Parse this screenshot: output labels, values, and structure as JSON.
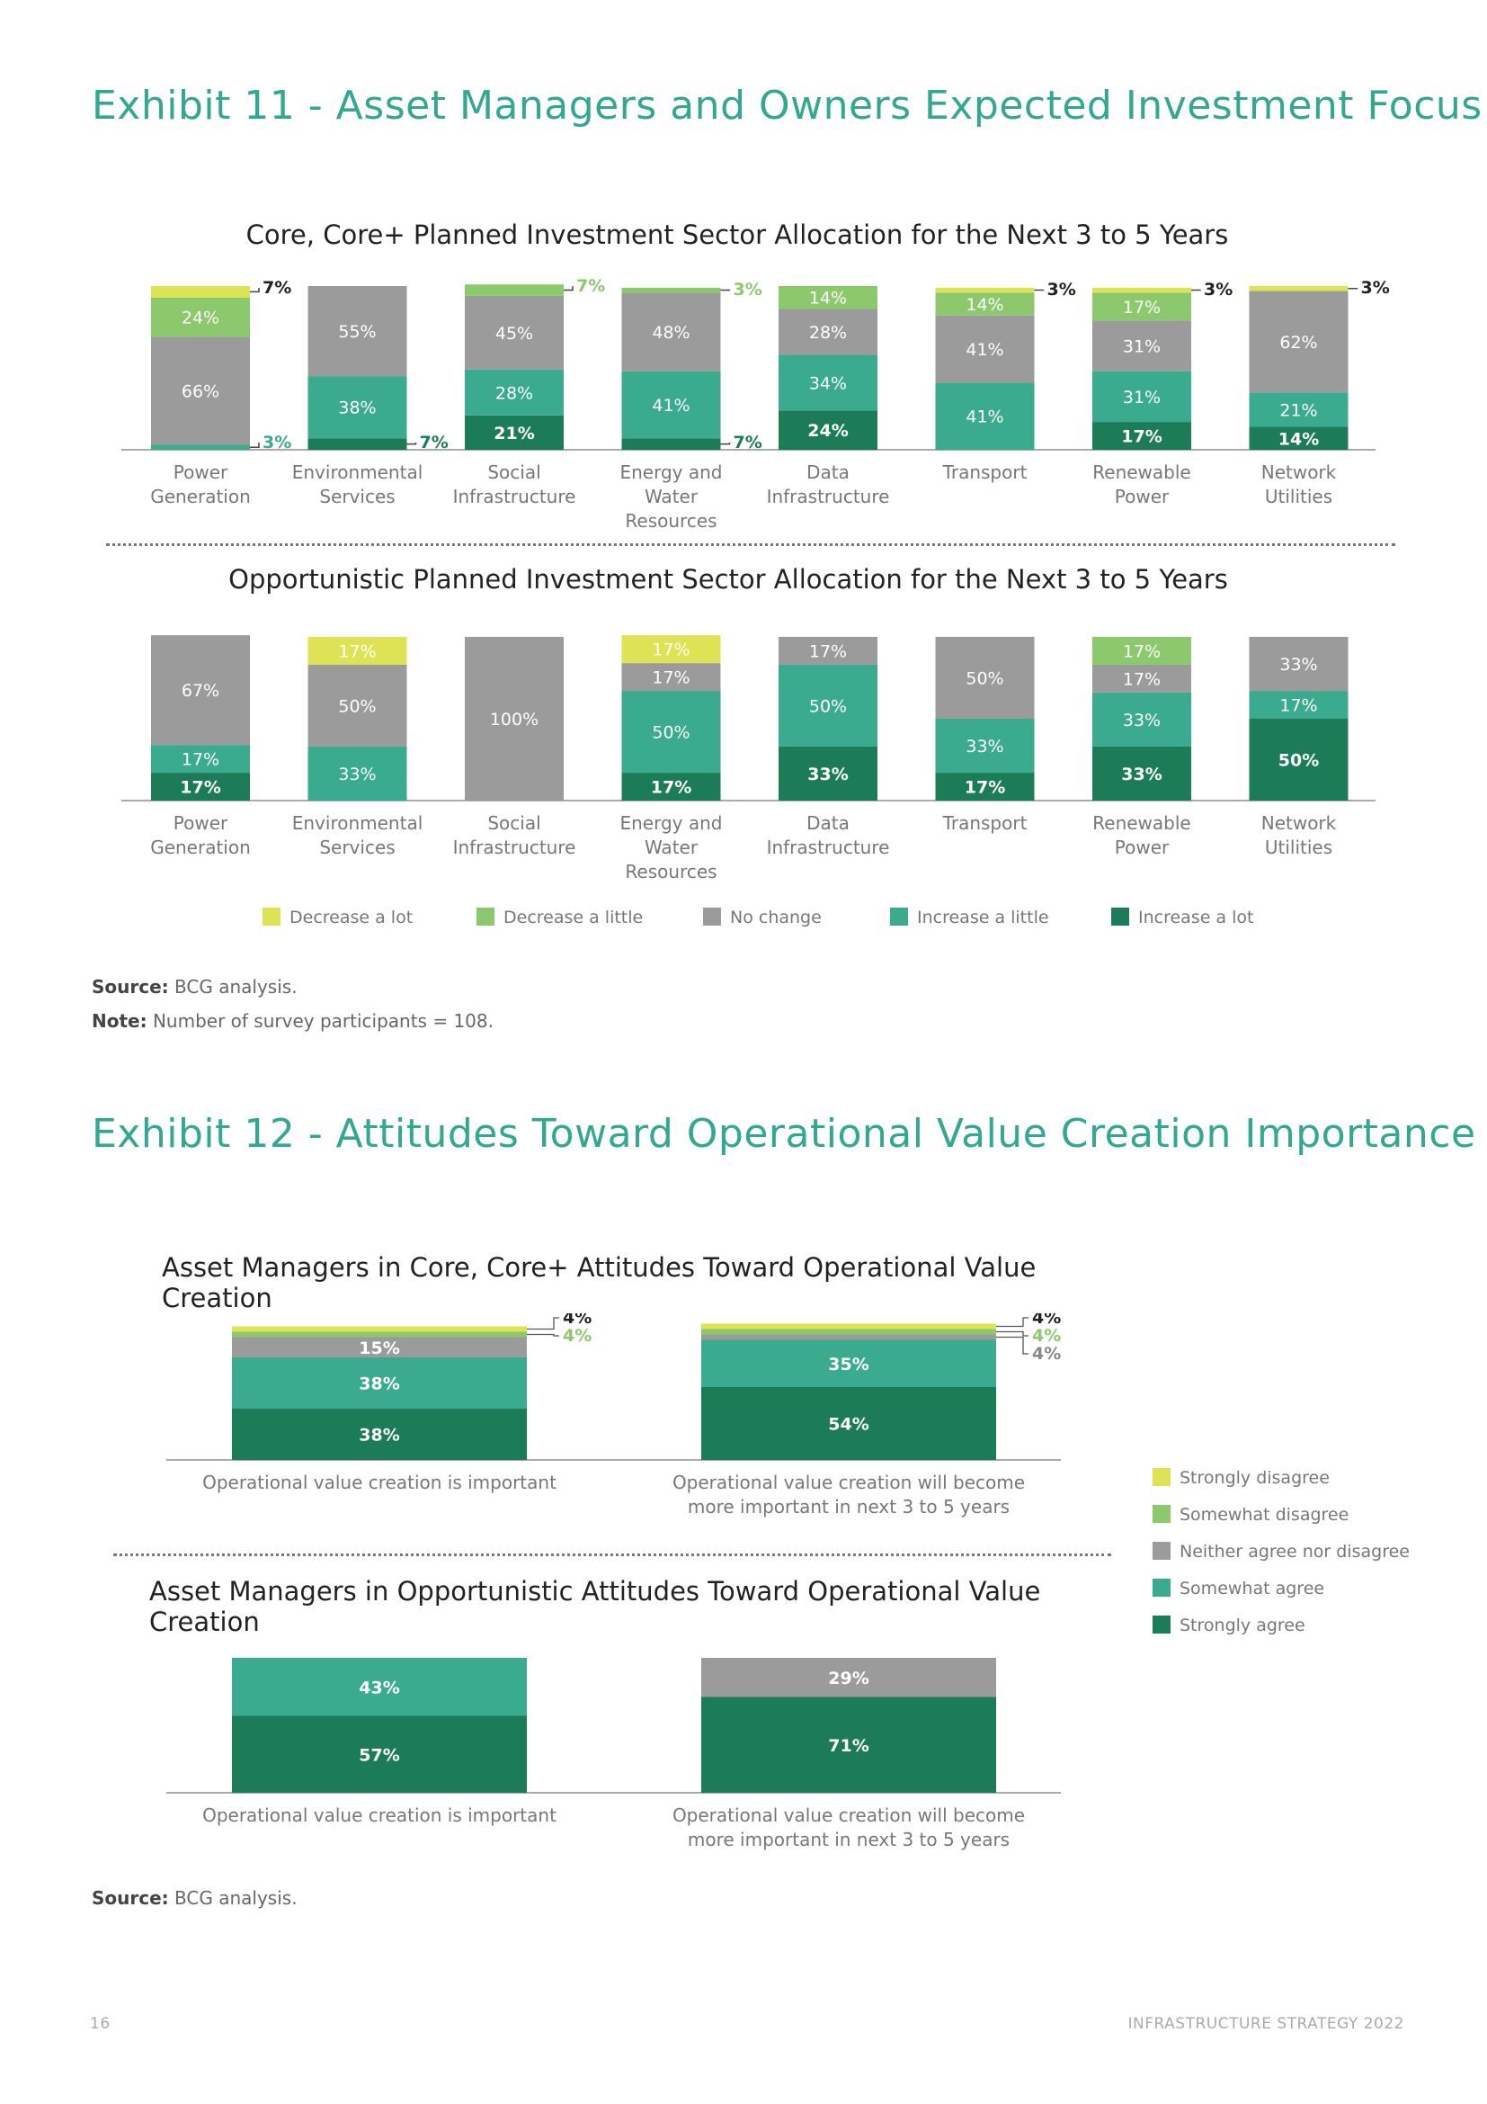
{
  "exhibit11": {
    "title": "Exhibit 11 - Asset Managers and Owners Expected Investment Focus",
    "source_label": "Source:",
    "source_text": "BCG analysis.",
    "note_label": "Note:",
    "note_text": "Number of survey participants = 108."
  },
  "exhibit12": {
    "title": "Exhibit 12 - Attitudes Toward Operational Value Creation Importance",
    "source_label": "Source:",
    "source_text": "BCG analysis."
  },
  "footer": {
    "page_number": "16",
    "publication": "INFRASTRUCTURE STRATEGY 2022"
  },
  "colors": {
    "decrease_a_lot": "#dde354",
    "decrease_a_little": "#8cc96d",
    "no_change": "#9b9b9b",
    "increase_a_little": "#3aab8e",
    "increase_a_lot": "#1d7c58",
    "title_green": "#32a891"
  },
  "chart_data": [
    {
      "type": "bar",
      "stacked": true,
      "title": "Core, Core+ Planned Investment Sector Allocation for the Next 3 to 5 Years",
      "categories": [
        "Power\nGeneration",
        "Environmental\nServices",
        "Social\nInfrastructure",
        "Energy and\nWater\nResources",
        "Data\nInfrastructure",
        "Transport",
        "Renewable\nPower",
        "Network\nUtilities"
      ],
      "series": [
        {
          "name": "Increase a lot",
          "values": [
            0,
            7,
            21,
            7,
            24,
            0,
            17,
            14
          ]
        },
        {
          "name": "Increase a little",
          "values": [
            3,
            38,
            28,
            41,
            34,
            41,
            31,
            21
          ]
        },
        {
          "name": "No change",
          "values": [
            66,
            55,
            45,
            48,
            28,
            41,
            31,
            62
          ]
        },
        {
          "name": "Decrease a little",
          "values": [
            24,
            0,
            7,
            3,
            14,
            14,
            17,
            0
          ]
        },
        {
          "name": "Decrease a lot",
          "values": [
            7,
            0,
            0,
            0,
            0,
            3,
            3,
            3
          ]
        }
      ],
      "ylim": [
        0,
        100
      ],
      "legend": "bottom"
    },
    {
      "type": "bar",
      "stacked": true,
      "title": "Opportunistic Planned Investment Sector Allocation for the Next 3 to 5 Years",
      "categories": [
        "Power\nGeneration",
        "Environmental\nServices",
        "Social\nInfrastructure",
        "Energy and\nWater\nResources",
        "Data\nInfrastructure",
        "Transport",
        "Renewable\nPower",
        "Network\nUtilities"
      ],
      "series": [
        {
          "name": "Increase a lot",
          "values": [
            17,
            0,
            0,
            17,
            33,
            17,
            33,
            50
          ]
        },
        {
          "name": "Increase a little",
          "values": [
            17,
            33,
            0,
            50,
            50,
            33,
            33,
            17
          ]
        },
        {
          "name": "No change",
          "values": [
            67,
            50,
            100,
            17,
            17,
            50,
            17,
            33
          ]
        },
        {
          "name": "Decrease a little",
          "values": [
            0,
            0,
            0,
            0,
            0,
            0,
            17,
            0
          ]
        },
        {
          "name": "Decrease a lot",
          "values": [
            0,
            17,
            0,
            17,
            0,
            0,
            0,
            0
          ]
        }
      ],
      "ylim": [
        0,
        100
      ],
      "legend_labels": [
        "Decrease a lot",
        "Decrease a little",
        "No change",
        "Increase a little",
        "Increase a lot"
      ],
      "legend": "bottom"
    },
    {
      "type": "bar",
      "stacked": true,
      "title": "Asset Managers in Core, Core+ Attitudes Toward Operational Value Creation",
      "categories": [
        "Operational value creation is important",
        "Operational value creation will become\nmore important in next 3 to 5 years"
      ],
      "series": [
        {
          "name": "Strongly agree",
          "values": [
            38,
            54
          ]
        },
        {
          "name": "Somewhat agree",
          "values": [
            38,
            35
          ]
        },
        {
          "name": "Neither agree nor disagree",
          "values": [
            15,
            4
          ]
        },
        {
          "name": "Somewhat disagree",
          "values": [
            4,
            4
          ]
        },
        {
          "name": "Strongly disagree",
          "values": [
            4,
            4
          ]
        }
      ],
      "ylim": [
        0,
        100
      ],
      "legend": "right"
    },
    {
      "type": "bar",
      "stacked": true,
      "title": "Asset Managers in Opportunistic Attitudes Toward Operational Value Creation",
      "categories": [
        "Operational value creation is important",
        "Operational value creation will become\nmore important in next 3 to 5 years"
      ],
      "series": [
        {
          "name": "Strongly agree",
          "values": [
            57,
            71
          ]
        },
        {
          "name": "Somewhat agree",
          "values": [
            43,
            0
          ]
        },
        {
          "name": "Neither agree nor disagree",
          "values": [
            0,
            29
          ]
        },
        {
          "name": "Somewhat disagree",
          "values": [
            0,
            0
          ]
        },
        {
          "name": "Strongly disagree",
          "values": [
            0,
            0
          ]
        }
      ],
      "ylim": [
        0,
        100
      ],
      "legend_labels": [
        "Strongly disagree",
        "Somewhat disagree",
        "Neither agree nor disagree",
        "Somewhat agree",
        "Strongly agree"
      ],
      "legend": "right"
    }
  ]
}
